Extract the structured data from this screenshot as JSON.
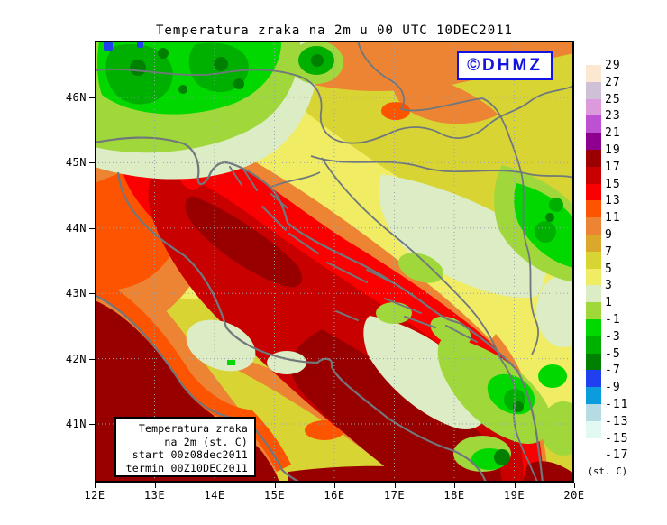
{
  "title": "Temperatura zraka na 2m u 00 UTC 10DEC2011",
  "watermark": {
    "label": "©DHMZ",
    "color": "#1414E0"
  },
  "info_box": {
    "lines": [
      "Temperatura zraka",
      "na 2m (st. C)",
      "start 00z08dec2011",
      "termin 00Z10DEC2011"
    ]
  },
  "colorbar": {
    "unit_label": "(st. C)",
    "tick_labels": [
      "29",
      "27",
      "25",
      "23",
      "21",
      "19",
      "17",
      "15",
      "13",
      "11",
      "9",
      "7",
      "5",
      "3",
      "1",
      "-1",
      "-3",
      "-5",
      "-7",
      "-9",
      "-11",
      "-13",
      "-15",
      "-17"
    ],
    "swatch_colors": [
      "#FCE8D0",
      "#CEC0D6",
      "#DC9ADC",
      "#BE50D2",
      "#8E008E",
      "#9A0000",
      "#C80000",
      "#FA0000",
      "#FC5400",
      "#EC8434",
      "#DCA82C",
      "#D8D434",
      "#F0EC64",
      "#DCECC4",
      "#A0D83C",
      "#00D800",
      "#00B000",
      "#008000",
      "#2040F0",
      "#0A9CDC",
      "#B4DCE2",
      "#E2F8F2",
      "#FFFFFF"
    ]
  },
  "axes": {
    "lat_labels": [
      "46N",
      "45N",
      "44N",
      "43N",
      "42N",
      "41N"
    ],
    "lon_labels": [
      "12E",
      "13E",
      "14E",
      "15E",
      "16E",
      "17E",
      "18E",
      "19E",
      "20E"
    ]
  },
  "map_palette": {
    "sea_core": "#C80000",
    "sea_deep_warm": "#980000",
    "sea_fringe": "#FA0000",
    "land_warm": "#EC8434",
    "land_mild": "#F0EC64",
    "land_cool": "#DCECC4",
    "coastline": "#70787C",
    "gridline": "#9AA4AA",
    "frame": "#000000"
  }
}
